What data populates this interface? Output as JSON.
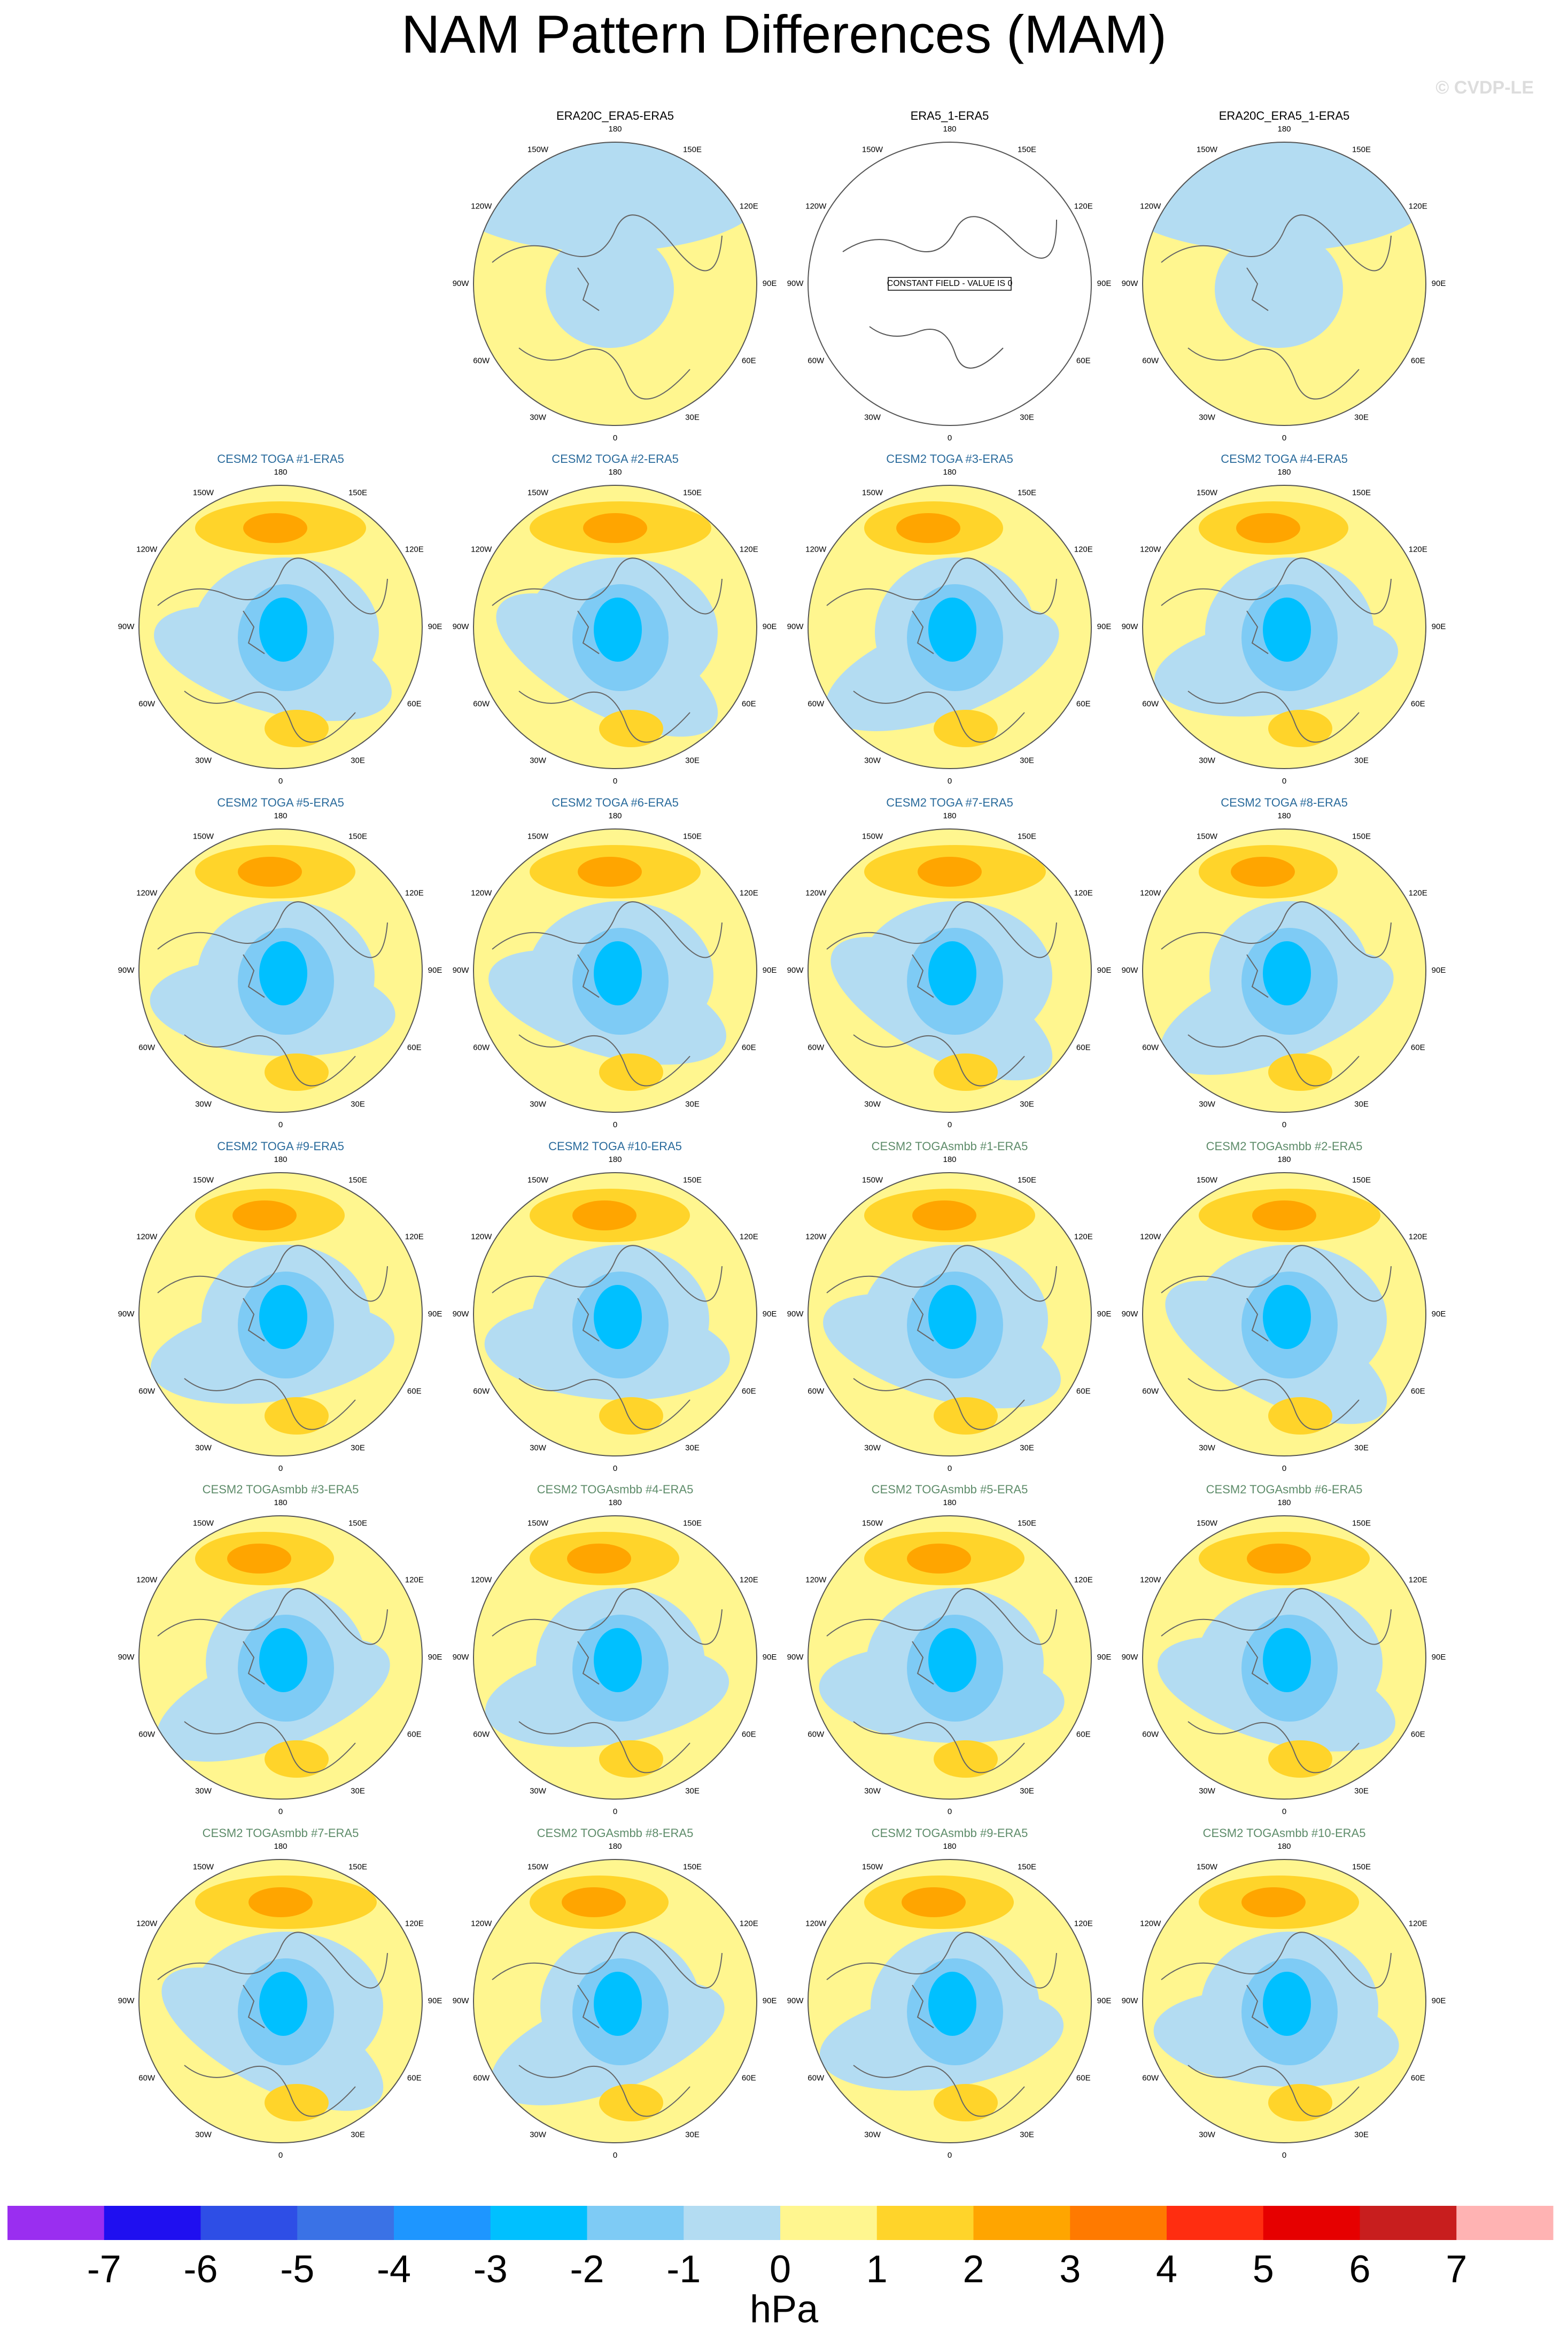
{
  "title": "NAM Pattern Differences (MAM)",
  "watermark": "© CVDP-LE",
  "panels": [
    {
      "title": "ERA20C_ERA5-ERA5",
      "color": "#000000"
    },
    {
      "title": "ERA5_1-ERA5",
      "color": "#000000"
    },
    {
      "title": "ERA20C_ERA5_1-ERA5",
      "color": "#000000"
    },
    {
      "title": "CESM2 TOGA #1-ERA5",
      "color": "#2a6b9c"
    },
    {
      "title": "CESM2 TOGA #2-ERA5",
      "color": "#2a6b9c"
    },
    {
      "title": "CESM2 TOGA #3-ERA5",
      "color": "#2a6b9c"
    },
    {
      "title": "CESM2 TOGA #4-ERA5",
      "color": "#2a6b9c"
    },
    {
      "title": "CESM2 TOGA #5-ERA5",
      "color": "#2a6b9c"
    },
    {
      "title": "CESM2 TOGA #6-ERA5",
      "color": "#2a6b9c"
    },
    {
      "title": "CESM2 TOGA #7-ERA5",
      "color": "#2a6b9c"
    },
    {
      "title": "CESM2 TOGA #8-ERA5",
      "color": "#2a6b9c"
    },
    {
      "title": "CESM2 TOGA #9-ERA5",
      "color": "#2a6b9c"
    },
    {
      "title": "CESM2 TOGA #10-ERA5",
      "color": "#2a6b9c"
    },
    {
      "title": "CESM2 TOGAsmbb #1-ERA5",
      "color": "#5e8c6a"
    },
    {
      "title": "CESM2 TOGAsmbb #2-ERA5",
      "color": "#5e8c6a"
    },
    {
      "title": "CESM2 TOGAsmbb #3-ERA5",
      "color": "#5e8c6a"
    },
    {
      "title": "CESM2 TOGAsmbb #4-ERA5",
      "color": "#5e8c6a"
    },
    {
      "title": "CESM2 TOGAsmbb #5-ERA5",
      "color": "#5e8c6a"
    },
    {
      "title": "CESM2 TOGAsmbb #6-ERA5",
      "color": "#5e8c6a"
    },
    {
      "title": "CESM2 TOGAsmbb #7-ERA5",
      "color": "#5e8c6a"
    },
    {
      "title": "CESM2 TOGAsmbb #8-ERA5",
      "color": "#5e8c6a"
    },
    {
      "title": "CESM2 TOGAsmbb #9-ERA5",
      "color": "#5e8c6a"
    },
    {
      "title": "CESM2 TOGAsmbb #10-ERA5",
      "color": "#5e8c6a"
    }
  ],
  "longitude_labels": [
    "180",
    "150E",
    "120E",
    "90E",
    "60E",
    "30E",
    "0",
    "30W",
    "60W",
    "90W",
    "120W",
    "150W"
  ],
  "constant_field_note": "CONSTANT FIELD - VALUE IS 0",
  "colorbar": {
    "colors": [
      "#9a2ef0",
      "#1f0ff0",
      "#2e4ee6",
      "#3a72e6",
      "#1e96ff",
      "#00c0ff",
      "#7ecbf5",
      "#b3dcf2",
      "#fff68f",
      "#ffd42a",
      "#ffa500",
      "#ff7a00",
      "#ff2d10",
      "#e60000",
      "#c81e1e",
      "#ffb3b3"
    ],
    "ticks": [
      -7,
      -6,
      -5,
      -4,
      -3,
      -2,
      -1,
      0,
      1,
      2,
      3,
      4,
      5,
      6,
      7
    ],
    "label": "hPa"
  }
}
